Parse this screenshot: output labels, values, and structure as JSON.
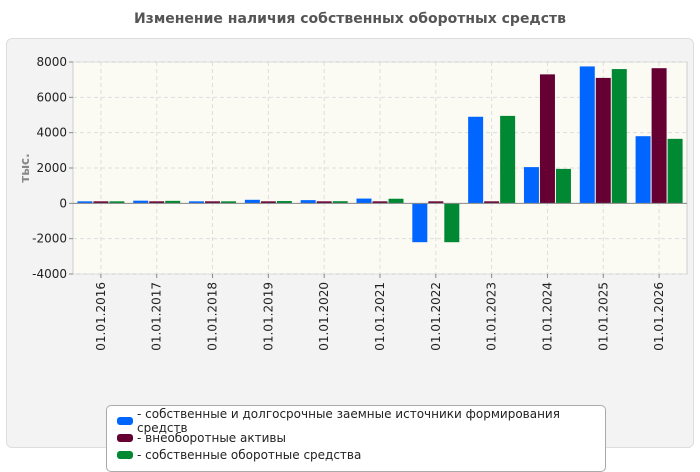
{
  "title": "Изменение наличия собственных оборотных средств",
  "chart_data": {
    "type": "bar",
    "ylabel": "тыс.",
    "ylim": [
      -4000,
      8000
    ],
    "yticks": [
      8000,
      6000,
      4000,
      2000,
      0,
      -2000,
      -4000
    ],
    "grid": true,
    "legend_position": "bottom",
    "categories": [
      "01.01.2016",
      "01.01.2017",
      "01.01.2018",
      "01.01.2019",
      "01.01.2020",
      "01.01.2021",
      "01.01.2022",
      "01.01.2023",
      "01.01.2024",
      "01.01.2025",
      "01.01.2026"
    ],
    "series": [
      {
        "name": "- собственные и долгосрочные заемные источники формирования средств",
        "color": "#0066ff",
        "values": [
          80,
          150,
          80,
          200,
          180,
          270,
          -2200,
          4900,
          2050,
          7750,
          3800
        ]
      },
      {
        "name": "- внеоборотные активы",
        "color": "#660033",
        "values": [
          60,
          60,
          60,
          70,
          60,
          60,
          50,
          60,
          7300,
          7100,
          7650
        ]
      },
      {
        "name": "- собственные оборотные средства",
        "color": "#008833",
        "values": [
          70,
          140,
          70,
          130,
          120,
          260,
          -2200,
          4950,
          1950,
          7600,
          3650
        ]
      }
    ]
  }
}
